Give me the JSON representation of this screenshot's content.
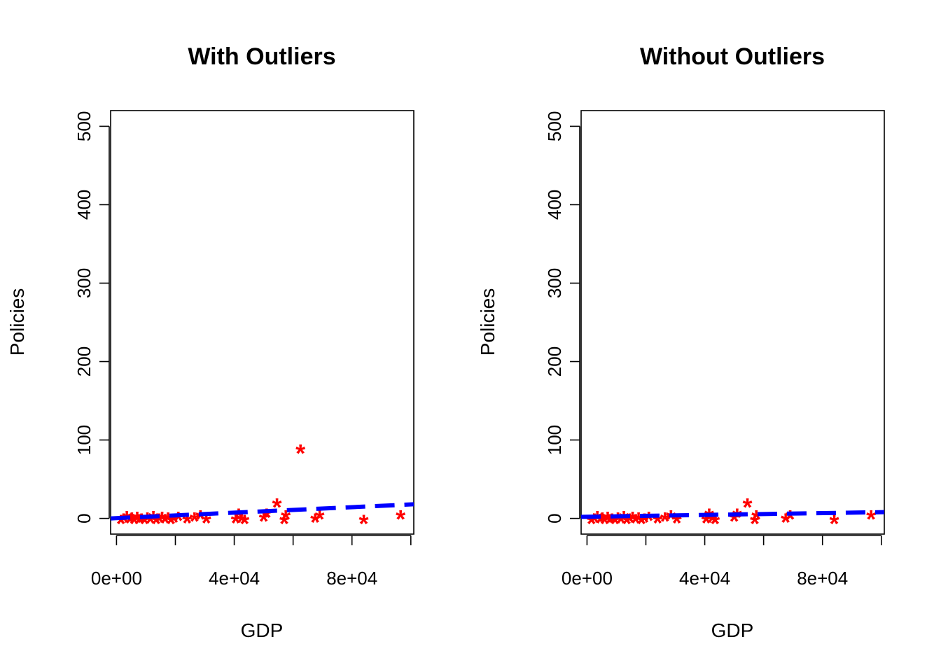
{
  "colors": {
    "points": "#ff0000",
    "fit_line": "#0000ff",
    "axes": "#000000",
    "background": "#ffffff"
  },
  "chart_data": [
    {
      "type": "scatter",
      "title": "With Outliers",
      "xlabel": "GDP",
      "ylabel": "Policies",
      "xlim": [
        -2000,
        101000
      ],
      "ylim": [
        -20,
        520
      ],
      "x_ticks": [
        0,
        20000,
        40000,
        60000,
        80000,
        100000
      ],
      "x_tick_labels": [
        "0e+00",
        "",
        "4e+04",
        "",
        "8e+04",
        ""
      ],
      "y_ticks": [
        0,
        100,
        200,
        300,
        400,
        500
      ],
      "y_tick_labels": [
        "0",
        "100",
        "200",
        "300",
        "400",
        "500"
      ],
      "marker": "*",
      "grid": false,
      "points": [
        {
          "x": 1500,
          "y": 0
        },
        {
          "x": 2500,
          "y": 2
        },
        {
          "x": 3500,
          "y": 5
        },
        {
          "x": 4500,
          "y": 1
        },
        {
          "x": 5200,
          "y": 3
        },
        {
          "x": 6000,
          "y": 0
        },
        {
          "x": 7000,
          "y": 4
        },
        {
          "x": 7800,
          "y": 1
        },
        {
          "x": 8500,
          "y": 2
        },
        {
          "x": 9500,
          "y": 0
        },
        {
          "x": 10500,
          "y": 3
        },
        {
          "x": 11500,
          "y": 1
        },
        {
          "x": 12500,
          "y": 5
        },
        {
          "x": 13500,
          "y": 0
        },
        {
          "x": 14500,
          "y": 2
        },
        {
          "x": 15500,
          "y": 4
        },
        {
          "x": 16500,
          "y": 1
        },
        {
          "x": 17500,
          "y": 3
        },
        {
          "x": 18500,
          "y": 0
        },
        {
          "x": 19500,
          "y": 2
        },
        {
          "x": 21000,
          "y": 4
        },
        {
          "x": 24000,
          "y": 1
        },
        {
          "x": 26500,
          "y": 3
        },
        {
          "x": 28500,
          "y": 6
        },
        {
          "x": 30500,
          "y": 1
        },
        {
          "x": 40500,
          "y": 1
        },
        {
          "x": 41500,
          "y": 8
        },
        {
          "x": 42500,
          "y": 2
        },
        {
          "x": 43500,
          "y": 0
        },
        {
          "x": 50000,
          "y": 3
        },
        {
          "x": 51000,
          "y": 8
        },
        {
          "x": 54500,
          "y": 21
        },
        {
          "x": 57000,
          "y": 0
        },
        {
          "x": 57500,
          "y": 6
        },
        {
          "x": 62500,
          "y": 90
        },
        {
          "x": 67500,
          "y": 2
        },
        {
          "x": 69000,
          "y": 6
        },
        {
          "x": 84000,
          "y": 0
        },
        {
          "x": 96500,
          "y": 6
        }
      ],
      "fit_line": {
        "x": [
          -2000,
          101000
        ],
        "y": [
          0,
          18
        ]
      }
    },
    {
      "type": "scatter",
      "title": "Without Outliers",
      "xlabel": "GDP",
      "ylabel": "Policies",
      "xlim": [
        -2000,
        101000
      ],
      "ylim": [
        -20,
        520
      ],
      "x_ticks": [
        0,
        20000,
        40000,
        60000,
        80000,
        100000
      ],
      "x_tick_labels": [
        "0e+00",
        "",
        "4e+04",
        "",
        "8e+04",
        ""
      ],
      "y_ticks": [
        0,
        100,
        200,
        300,
        400,
        500
      ],
      "y_tick_labels": [
        "0",
        "100",
        "200",
        "300",
        "400",
        "500"
      ],
      "marker": "*",
      "grid": false,
      "points": [
        {
          "x": 1500,
          "y": 0
        },
        {
          "x": 2500,
          "y": 2
        },
        {
          "x": 3500,
          "y": 5
        },
        {
          "x": 4500,
          "y": 1
        },
        {
          "x": 5200,
          "y": 3
        },
        {
          "x": 6000,
          "y": 0
        },
        {
          "x": 7000,
          "y": 4
        },
        {
          "x": 7800,
          "y": 1
        },
        {
          "x": 8500,
          "y": 2
        },
        {
          "x": 9500,
          "y": 0
        },
        {
          "x": 10500,
          "y": 3
        },
        {
          "x": 11500,
          "y": 1
        },
        {
          "x": 12500,
          "y": 5
        },
        {
          "x": 13500,
          "y": 0
        },
        {
          "x": 14500,
          "y": 2
        },
        {
          "x": 15500,
          "y": 4
        },
        {
          "x": 16500,
          "y": 1
        },
        {
          "x": 17500,
          "y": 3
        },
        {
          "x": 18500,
          "y": 0
        },
        {
          "x": 19500,
          "y": 2
        },
        {
          "x": 21000,
          "y": 4
        },
        {
          "x": 24000,
          "y": 1
        },
        {
          "x": 26500,
          "y": 3
        },
        {
          "x": 28500,
          "y": 6
        },
        {
          "x": 30500,
          "y": 1
        },
        {
          "x": 40500,
          "y": 1
        },
        {
          "x": 41500,
          "y": 8
        },
        {
          "x": 42500,
          "y": 2
        },
        {
          "x": 43500,
          "y": 0
        },
        {
          "x": 50000,
          "y": 3
        },
        {
          "x": 51000,
          "y": 8
        },
        {
          "x": 54500,
          "y": 21
        },
        {
          "x": 57000,
          "y": 0
        },
        {
          "x": 57500,
          "y": 6
        },
        {
          "x": 67500,
          "y": 2
        },
        {
          "x": 69000,
          "y": 6
        },
        {
          "x": 84000,
          "y": 0
        },
        {
          "x": 96500,
          "y": 6
        }
      ],
      "fit_line": {
        "x": [
          -2000,
          101000
        ],
        "y": [
          2,
          8
        ]
      }
    }
  ]
}
